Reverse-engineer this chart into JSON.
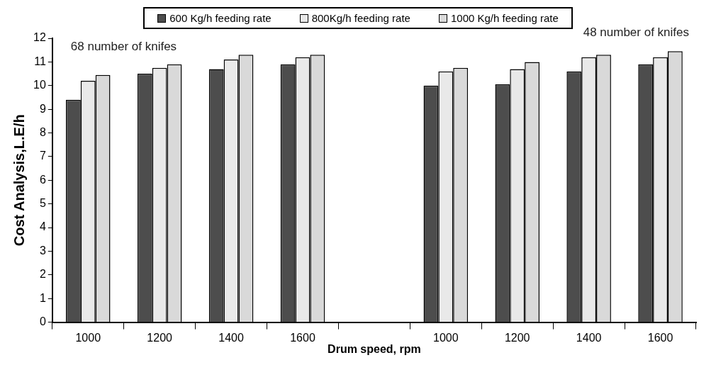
{
  "chart_data": {
    "type": "bar",
    "xlabel": "Drum speed, rpm",
    "ylabel": "Cost Analysis,L.E/h",
    "categories": [
      "1000",
      "1200",
      "1400",
      "1600",
      null,
      "1000",
      "1200",
      "1400",
      "1600"
    ],
    "series": [
      {
        "name": "600 Kg/h feeding rate",
        "color": "#4d4d4d",
        "values": [
          9.4,
          10.5,
          10.7,
          10.9,
          null,
          10.0,
          10.05,
          10.6,
          10.9
        ]
      },
      {
        "name": "800Kg/h feeding rate",
        "color": "#e9e9e9",
        "values": [
          10.2,
          10.75,
          11.1,
          11.2,
          null,
          10.6,
          10.7,
          11.2,
          11.2
        ]
      },
      {
        "name": "1000 Kg/h feeding rate",
        "color": "#d9d9d9",
        "values": [
          10.45,
          10.9,
          11.3,
          11.3,
          null,
          10.75,
          11.0,
          11.3,
          11.45
        ]
      }
    ],
    "ylim": [
      0,
      12
    ],
    "yticks": [
      0,
      1,
      2,
      3,
      4,
      5,
      6,
      7,
      8,
      9,
      10,
      11,
      12
    ],
    "grid": false,
    "legend": "top",
    "annotations": [
      "68 number of knifes",
      "48 number of knifes"
    ]
  }
}
